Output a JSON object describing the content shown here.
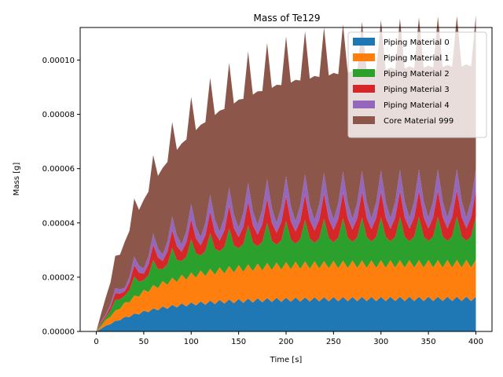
{
  "chart_data": {
    "type": "area",
    "stacked": true,
    "title": "Mass of Te129",
    "xlabel": "Time [s]",
    "ylabel": "Mass [g]",
    "xlim": [
      -17,
      417
    ],
    "ylim": [
      0,
      0.000112
    ],
    "xticks": [
      0,
      50,
      100,
      150,
      200,
      250,
      300,
      350,
      400
    ],
    "yticks": [
      0,
      2e-05,
      4e-05,
      6e-05,
      8e-05,
      0.0001
    ],
    "ytick_labels": [
      "0.00000",
      "0.00002",
      "0.00004",
      "0.00006",
      "0.00008",
      "0.00010"
    ],
    "legend_position": "upper right",
    "time_step_s": 5,
    "x_range": [
      0,
      400
    ],
    "series": [
      {
        "name": "Piping Material 0",
        "color": "#1f77b4",
        "steady_value": 1.2e-05,
        "jag_amplitude": 8e-07,
        "time_constant_s": 55
      },
      {
        "name": "Piping Material 1",
        "color": "#ff7f0e",
        "steady_value": 1.3e-05,
        "jag_amplitude": 6e-07,
        "time_constant_s": 60
      },
      {
        "name": "Piping Material 2",
        "color": "#2ca02c",
        "steady_value": 1.15e-05,
        "oscillation_amplitude": 4.5e-06,
        "time_constant_s": 70
      },
      {
        "name": "Piping Material 3",
        "color": "#d62728",
        "steady_value": 7.2e-06,
        "oscillation_amplitude": 2.5e-06,
        "time_constant_s": 70
      },
      {
        "name": "Piping Material 4",
        "color": "#9467bd",
        "steady_value": 6e-06,
        "oscillation_amplitude": 2e-06,
        "time_constant_s": 80
      },
      {
        "name": "Core Material 999",
        "color": "#8c564b",
        "steady_value": 5.35e-05,
        "jag_amplitude": 3.5e-06,
        "time_constant_s": 85
      }
    ]
  }
}
